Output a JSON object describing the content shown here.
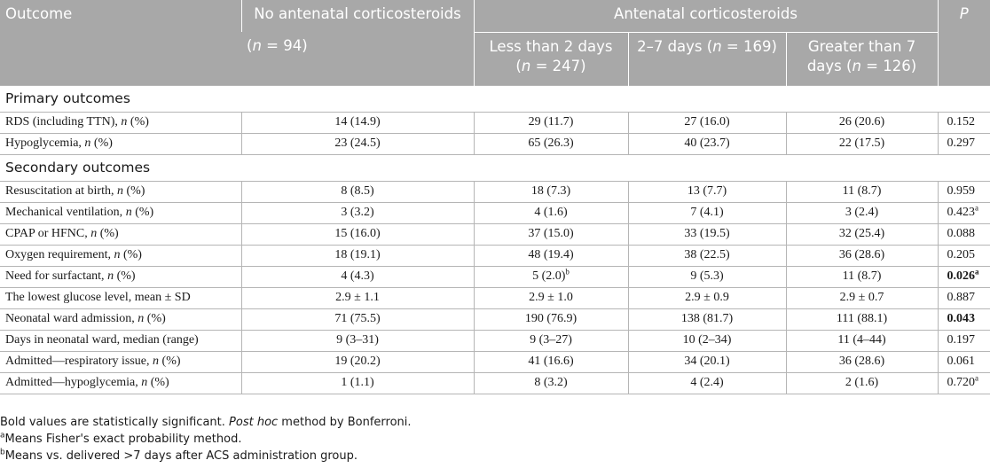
{
  "header": {
    "outcome": "Outcome",
    "no_acs": "No antenatal corticosteroids",
    "no_acs_n": "(n = 94)",
    "acs": "Antenatal corticosteroids",
    "p": "P",
    "sub1": "Less than 2 days (n = 247)",
    "sub2": "2–7 days (n = 169)",
    "sub3": "Greater than 7 days (n = 126)"
  },
  "sections": [
    {
      "title": "Primary outcomes",
      "rows": [
        {
          "label": "RDS (including TTN), n (%)",
          "c1": "14 (14.9)",
          "c2": "29 (11.7)",
          "c3": "27 (16.0)",
          "c4": "26 (20.6)",
          "p": "0.152",
          "p_sup": "",
          "p_bold": false
        },
        {
          "label": "Hypoglycemia, n (%)",
          "c1": "23 (24.5)",
          "c2": "65 (26.3)",
          "c3": "40 (23.7)",
          "c4": "22 (17.5)",
          "p": "0.297",
          "p_sup": "",
          "p_bold": false
        }
      ]
    },
    {
      "title": "Secondary outcomes",
      "rows": [
        {
          "label": "Resuscitation at birth, n (%)",
          "c1": "8 (8.5)",
          "c2": "18 (7.3)",
          "c3": "13 (7.7)",
          "c4": "11 (8.7)",
          "p": "0.959",
          "p_sup": "",
          "p_bold": false
        },
        {
          "label": "Mechanical ventilation, n (%)",
          "c1": "3 (3.2)",
          "c2": "4 (1.6)",
          "c3": "7 (4.1)",
          "c4": "3 (2.4)",
          "p": "0.423",
          "p_sup": "a",
          "p_bold": false
        },
        {
          "label": "CPAP or HFNC, n (%)",
          "c1": "15 (16.0)",
          "c2": "37 (15.0)",
          "c3": "33 (19.5)",
          "c4": "32 (25.4)",
          "p": "0.088",
          "p_sup": "",
          "p_bold": false
        },
        {
          "label": "Oxygen requirement, n (%)",
          "c1": "18 (19.1)",
          "c2": "48 (19.4)",
          "c3": "38 (22.5)",
          "c4": "36 (28.6)",
          "p": "0.205",
          "p_sup": "",
          "p_bold": false
        },
        {
          "label": "Need for surfactant, n (%)",
          "c1": "4 (4.3)",
          "c2": "5 (2.0)",
          "c2_sup": "b",
          "c3": "9 (5.3)",
          "c4": "11 (8.7)",
          "p": "0.026",
          "p_sup": "a",
          "p_bold": true
        },
        {
          "label": "The lowest glucose level, mean ± SD",
          "c1": "2.9 ± 1.1",
          "c2": "2.9 ± 1.0",
          "c3": "2.9 ± 0.9",
          "c4": "2.9 ± 0.7",
          "p": "0.887",
          "p_sup": "",
          "p_bold": false
        },
        {
          "label": "Neonatal ward admission, n (%)",
          "c1": "71 (75.5)",
          "c2": "190 (76.9)",
          "c3": "138 (81.7)",
          "c4": "111 (88.1)",
          "p": "0.043",
          "p_sup": "",
          "p_bold": true
        },
        {
          "label": "Days in neonatal ward, median (range)",
          "c1": "9 (3–31)",
          "c2": "9 (3–27)",
          "c3": "10 (2–34)",
          "c4": "11 (4–44)",
          "p": "0.197",
          "p_sup": "",
          "p_bold": false
        },
        {
          "label": "Admitted—respiratory issue, n (%)",
          "c1": "19 (20.2)",
          "c2": "41 (16.6)",
          "c3": "34 (20.1)",
          "c4": "36 (28.6)",
          "p": "0.061",
          "p_sup": "",
          "p_bold": false
        },
        {
          "label": "Admitted—hypoglycemia, n (%)",
          "c1": "1 (1.1)",
          "c2": "8 (3.2)",
          "c3": "4 (2.4)",
          "c4": "2 (1.6)",
          "p": "0.720",
          "p_sup": "a",
          "p_bold": false
        }
      ]
    }
  ],
  "notes": {
    "line1": "Bold values are statistically significant. Post hoc method by Bonferroni.",
    "line2_sup": "a",
    "line2": "Means Fisher's exact probability method.",
    "line3_sup": "b",
    "line3": "Means vs. delivered >7 days after ACS administration group."
  }
}
